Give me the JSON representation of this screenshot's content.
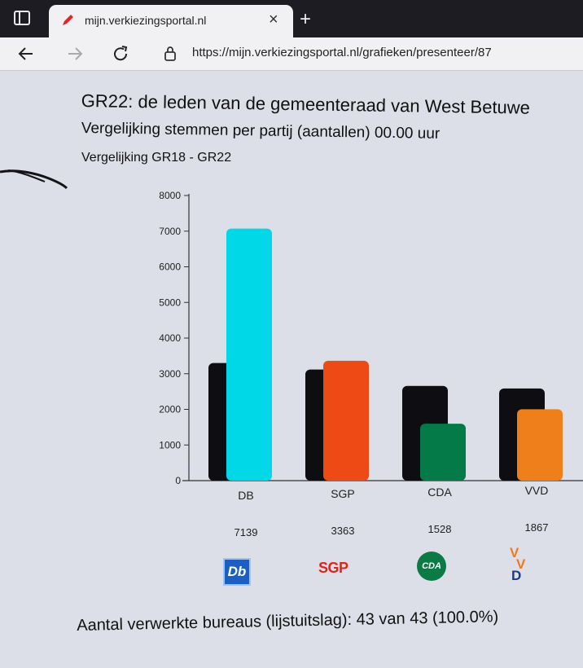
{
  "browser": {
    "tab_title": "mijn.verkiezingsportal.nl",
    "tab_close": "×",
    "new_tab": "+",
    "address": "https://mijn.verkiezingsportal.nl/grafieken/presenteer/87"
  },
  "page": {
    "title": "GR22: de leden van de gemeenteraad van West Betuwe",
    "subtitle": "Vergelijking stemmen per partij (aantallen) 00.00 uur",
    "comparison": "Vergelijking GR18 - GR22",
    "footer": "Aantal verwerkte bureaus (lijstuitslag): 43 van 43 (100.0%)"
  },
  "logos": {
    "db": "Db",
    "sgp": "SGP",
    "cda": "CDA",
    "vvd_v1": "V",
    "vvd_v2": "V",
    "vvd_d": "D"
  },
  "chart_data": {
    "type": "bar",
    "title": "Vergelijking GR18 - GR22",
    "categories": [
      "DB",
      "SGP",
      "CDA",
      "VVD"
    ],
    "series": [
      {
        "name": "GR18",
        "values": [
          3300,
          3050,
          2520,
          2380
        ],
        "color": "#0d0d12"
      },
      {
        "name": "GR22",
        "values": [
          7139,
          3363,
          1528,
          1867
        ],
        "colors": [
          "#00d8e8",
          "#ee4a16",
          "#047a49",
          "#ef7f1a"
        ]
      }
    ],
    "value_labels": [
      "7139",
      "3363",
      "1528",
      "1867"
    ],
    "yticks": [
      0,
      1000,
      2000,
      3000,
      4000,
      5000,
      6000,
      7000,
      8000
    ],
    "ylim": [
      0,
      8000
    ],
    "xlabel": "",
    "ylabel": ""
  }
}
